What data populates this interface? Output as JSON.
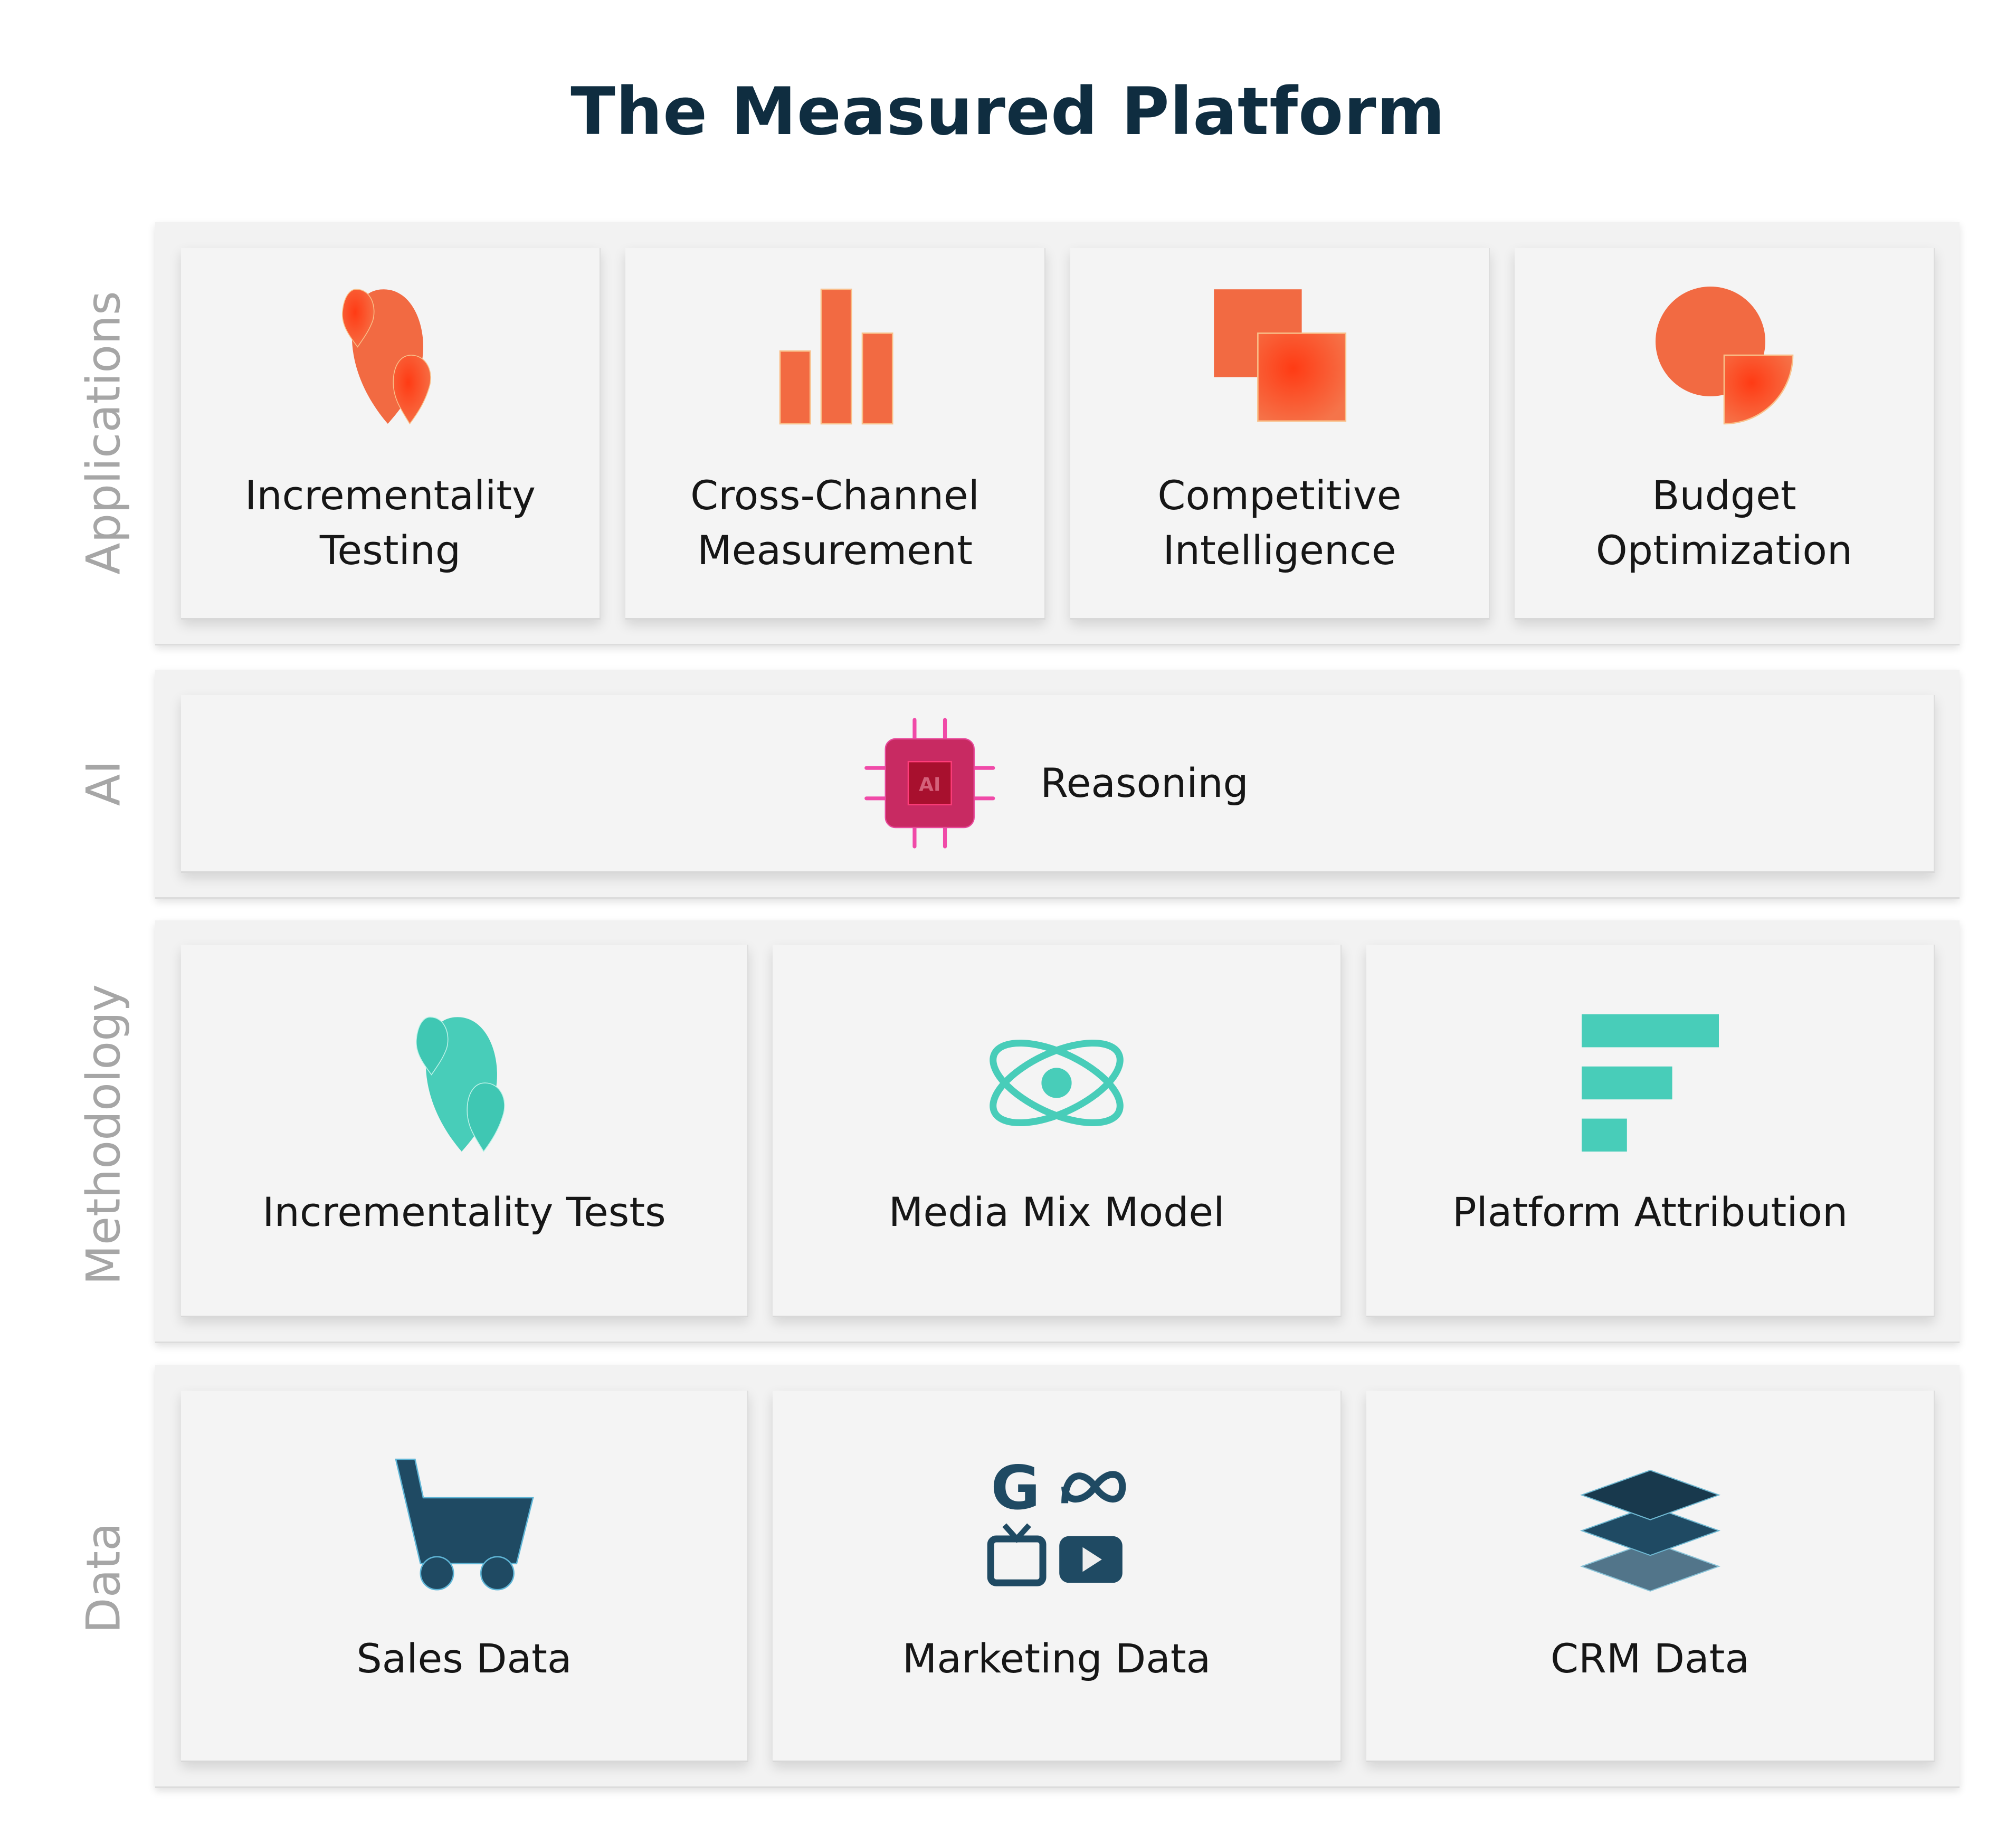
{
  "title": "The Measured Platform",
  "colors": {
    "title": "#0f2d40",
    "applications_accent": "#f5683f",
    "ai_accent": "#c8245f",
    "methodology_accent": "#48cdb9",
    "data_accent": "#1f4a63"
  },
  "layers": {
    "applications": {
      "label": "Applications",
      "cards": [
        {
          "line1": "Incrementality",
          "line2": "Testing",
          "icon": "droplets-icon"
        },
        {
          "line1": "Cross-Channel",
          "line2": "Measurement",
          "icon": "bar-chart-icon"
        },
        {
          "line1": "Competitive",
          "line2": "Intelligence",
          "icon": "overlapping-squares-icon"
        },
        {
          "line1": "Budget",
          "line2": "Optimization",
          "icon": "pie-chart-icon"
        }
      ]
    },
    "ai": {
      "label": "AI",
      "card": {
        "label": "Reasoning",
        "icon": "ai-chip-icon",
        "chip_text": "AI"
      }
    },
    "methodology": {
      "label": "Methodology",
      "cards": [
        {
          "label": "Incrementality Tests",
          "icon": "droplets-icon"
        },
        {
          "label": "Media Mix Model",
          "icon": "atom-icon"
        },
        {
          "label": "Platform Attribution",
          "icon": "horizontal-bars-icon"
        }
      ]
    },
    "data": {
      "label": "Data",
      "cards": [
        {
          "label": "Sales Data",
          "icon": "shopping-cart-icon"
        },
        {
          "label": "Marketing Data",
          "icon": "marketing-channels-icon"
        },
        {
          "label": "CRM Data",
          "icon": "layers-stack-icon"
        }
      ]
    }
  }
}
